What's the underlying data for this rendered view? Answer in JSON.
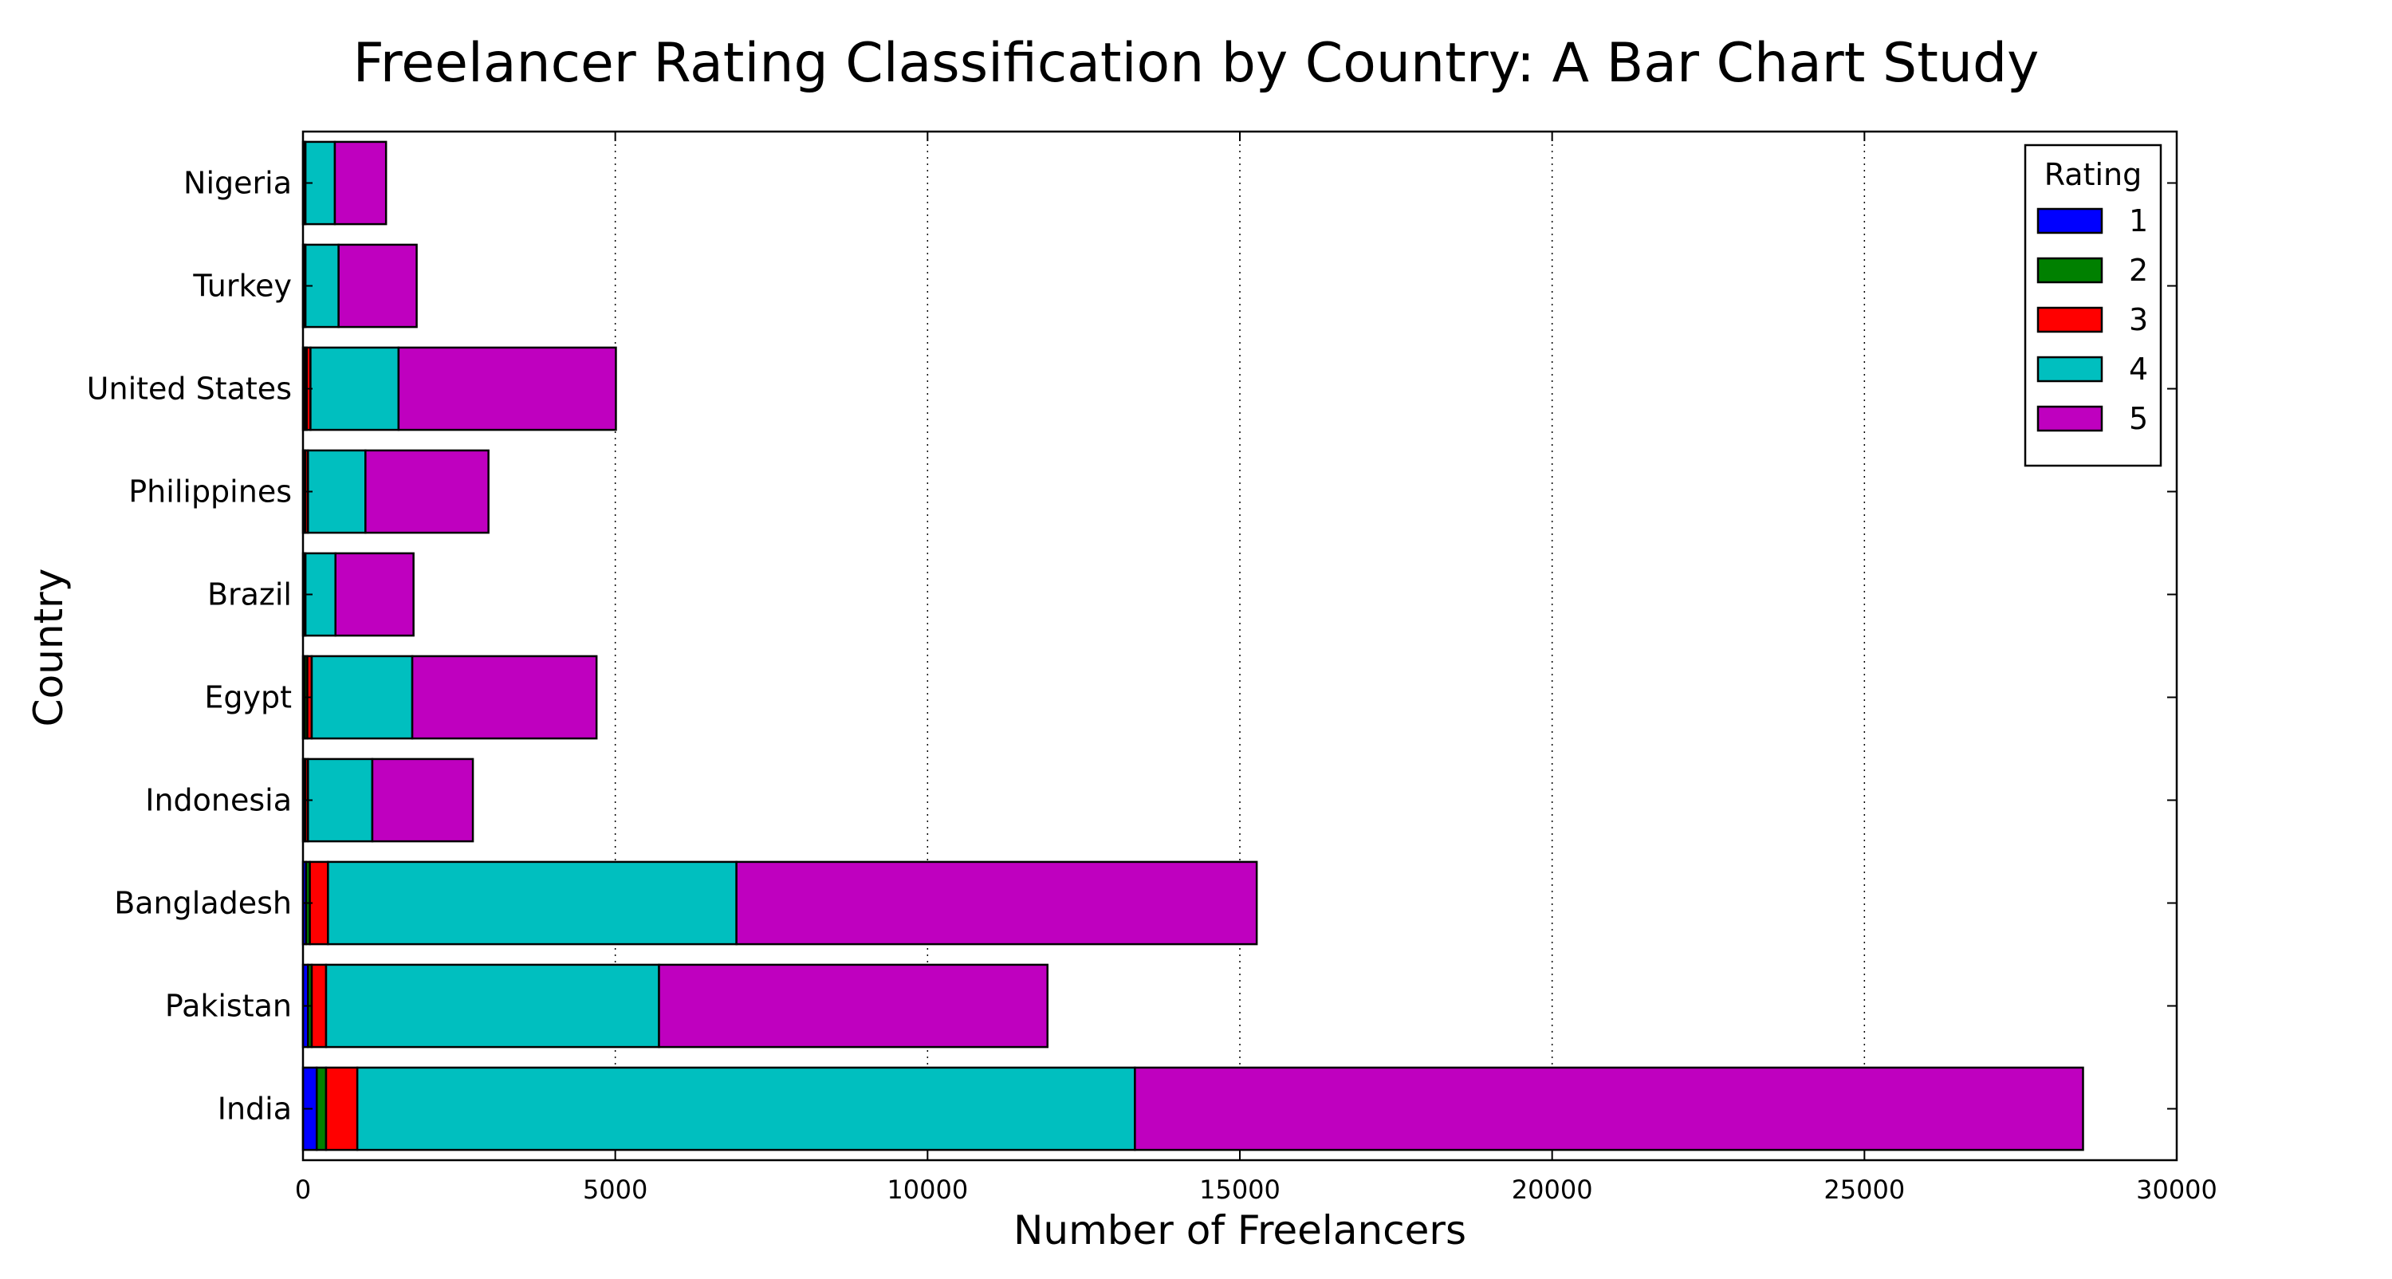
{
  "chart_data": {
    "type": "bar",
    "orientation": "horizontal",
    "stacked": true,
    "title": "Freelancer Rating Classification by Country: A Bar Chart Study",
    "xlabel": "Number of Freelancers",
    "ylabel": "Country",
    "xlim": [
      0,
      30000
    ],
    "xticks": [
      "0",
      "5000",
      "10000",
      "15000",
      "20000",
      "25000",
      "30000"
    ],
    "grid": "vertical dotted",
    "legend": {
      "title": "Rating",
      "placement": "top-right"
    },
    "categories": [
      "India",
      "Pakistan",
      "Bangladesh",
      "Indonesia",
      "Egypt",
      "Brazil",
      "Philippines",
      "United States",
      "Turkey",
      "Nigeria"
    ],
    "series": [
      {
        "name": "1",
        "color": "#0000ff",
        "values": [
          220,
          80,
          50,
          20,
          30,
          10,
          20,
          30,
          10,
          10
        ]
      },
      {
        "name": "2",
        "color": "#008000",
        "values": [
          150,
          60,
          60,
          20,
          40,
          10,
          20,
          30,
          10,
          10
        ]
      },
      {
        "name": "3",
        "color": "#ff0000",
        "values": [
          500,
          230,
          290,
          40,
          70,
          20,
          40,
          60,
          20,
          20
        ]
      },
      {
        "name": "4",
        "color": "#00bfbf",
        "values": [
          12450,
          5330,
          6540,
          1030,
          1610,
          480,
          920,
          1410,
          530,
          470
        ]
      },
      {
        "name": "5",
        "color": "#bf00bf",
        "values": [
          15180,
          6220,
          8330,
          1610,
          2950,
          1250,
          1970,
          3480,
          1250,
          820
        ]
      }
    ]
  }
}
